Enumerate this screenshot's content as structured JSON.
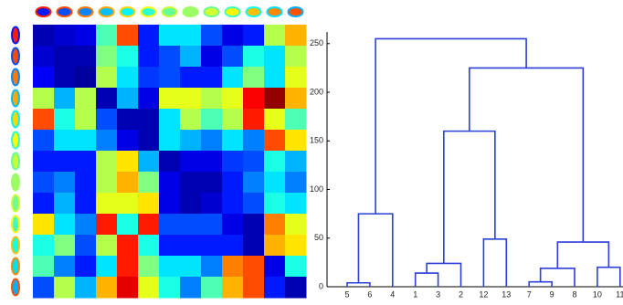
{
  "chart_data": [
    {
      "type": "heatmap",
      "colormap": "jet",
      "zlim": [
        0,
        1
      ],
      "values": [
        [
          0.05,
          0.08,
          0.1,
          0.45,
          0.8,
          0.15,
          0.35,
          0.35,
          0.2,
          0.1,
          0.15,
          0.55,
          0.7
        ],
        [
          0.08,
          0.05,
          0.05,
          0.5,
          0.4,
          0.15,
          0.2,
          0.3,
          0.1,
          0.2,
          0.4,
          0.35,
          0.55
        ],
        [
          0.12,
          0.05,
          0.03,
          0.55,
          0.35,
          0.18,
          0.2,
          0.15,
          0.15,
          0.35,
          0.5,
          0.35,
          0.6
        ],
        [
          0.55,
          0.3,
          0.55,
          0.05,
          0.3,
          0.1,
          0.6,
          0.6,
          0.55,
          0.6,
          0.88,
          0.98,
          0.7
        ],
        [
          0.8,
          0.4,
          0.55,
          0.2,
          0.05,
          0.05,
          0.35,
          0.55,
          0.45,
          0.55,
          0.85,
          0.6,
          0.45
        ],
        [
          0.2,
          0.35,
          0.35,
          0.25,
          0.1,
          0.05,
          0.35,
          0.3,
          0.25,
          0.35,
          0.25,
          0.8,
          0.65
        ],
        [
          0.15,
          0.15,
          0.15,
          0.55,
          0.65,
          0.3,
          0.05,
          0.1,
          0.1,
          0.18,
          0.2,
          0.4,
          0.3
        ],
        [
          0.2,
          0.25,
          0.15,
          0.55,
          0.7,
          0.5,
          0.1,
          0.05,
          0.05,
          0.15,
          0.25,
          0.35,
          0.25
        ],
        [
          0.15,
          0.3,
          0.15,
          0.6,
          0.6,
          0.65,
          0.1,
          0.05,
          0.08,
          0.15,
          0.2,
          0.4,
          0.35
        ],
        [
          0.65,
          0.35,
          0.25,
          0.85,
          0.4,
          0.85,
          0.2,
          0.2,
          0.2,
          0.1,
          0.05,
          0.75,
          0.6
        ],
        [
          0.4,
          0.5,
          0.2,
          0.55,
          0.85,
          0.4,
          0.15,
          0.15,
          0.15,
          0.15,
          0.05,
          0.7,
          0.65
        ],
        [
          0.45,
          0.25,
          0.15,
          0.35,
          0.85,
          0.5,
          0.35,
          0.35,
          0.25,
          0.75,
          0.8,
          0.1,
          0.4
        ],
        [
          0.2,
          0.55,
          0.3,
          0.7,
          0.9,
          0.6,
          0.4,
          0.25,
          0.45,
          0.7,
          0.8,
          0.15,
          0.05
        ]
      ]
    },
    {
      "type": "dendrogram",
      "color": "#2b3fd9",
      "ylim": [
        0,
        262
      ],
      "yticks": [
        0,
        50,
        100,
        150,
        200,
        250
      ],
      "tree": {
        "height": 255,
        "children": [
          {
            "height": 75,
            "children": [
              {
                "height": 4,
                "children": [
                  {
                    "label": "5"
                  },
                  {
                    "label": "6"
                  }
                ]
              },
              {
                "label": "4"
              }
            ]
          },
          {
            "height": 225,
            "children": [
              {
                "height": 160,
                "children": [
                  {
                    "height": 24,
                    "children": [
                      {
                        "height": 14,
                        "children": [
                          {
                            "label": "1"
                          },
                          {
                            "label": "3"
                          }
                        ]
                      },
                      {
                        "label": "2"
                      }
                    ]
                  },
                  {
                    "height": 49,
                    "children": [
                      {
                        "label": "12"
                      },
                      {
                        "label": "13"
                      }
                    ]
                  }
                ]
              },
              {
                "height": 46,
                "children": [
                  {
                    "height": 19,
                    "children": [
                      {
                        "height": 5,
                        "children": [
                          {
                            "label": "7"
                          },
                          {
                            "label": "9"
                          }
                        ]
                      },
                      {
                        "label": "8"
                      }
                    ]
                  },
                  {
                    "height": 20,
                    "children": [
                      {
                        "label": "10"
                      },
                      {
                        "label": "11"
                      }
                    ]
                  }
                ]
              }
            ]
          }
        ]
      }
    }
  ]
}
